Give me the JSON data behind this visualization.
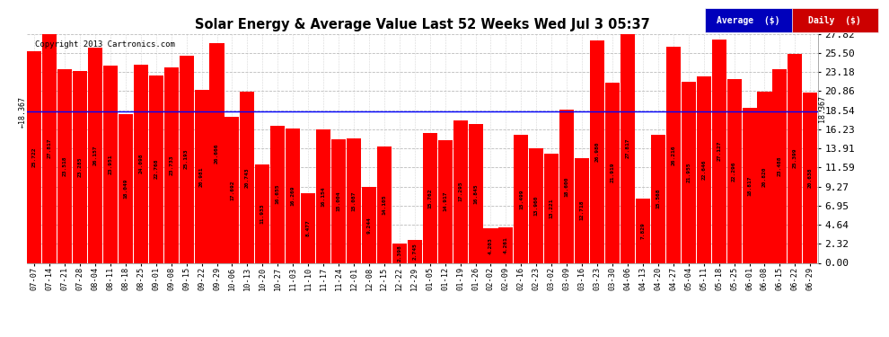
{
  "title": "Solar Energy & Average Value Last 52 Weeks Wed Jul 3 05:37",
  "copyright": "Copyright 2013 Cartronics.com",
  "bar_color": "#ff0000",
  "average_line_color": "#0000ff",
  "average_value": 18.367,
  "background_color": "#ffffff",
  "grid_color": "#bbbbbb",
  "yticks": [
    0.0,
    2.32,
    4.64,
    6.95,
    9.27,
    11.59,
    13.91,
    16.23,
    18.54,
    20.86,
    23.18,
    25.5,
    27.82
  ],
  "categories": [
    "07-07",
    "07-14",
    "07-21",
    "07-28",
    "08-04",
    "08-11",
    "08-18",
    "08-25",
    "09-01",
    "09-08",
    "09-15",
    "09-22",
    "09-29",
    "10-06",
    "10-13",
    "10-20",
    "10-27",
    "11-03",
    "11-10",
    "11-17",
    "11-24",
    "12-01",
    "12-08",
    "12-15",
    "12-22",
    "12-29",
    "01-05",
    "01-12",
    "01-19",
    "01-26",
    "02-02",
    "02-09",
    "02-16",
    "02-23",
    "03-02",
    "03-09",
    "03-16",
    "03-23",
    "03-30",
    "04-06",
    "04-13",
    "04-20",
    "04-27",
    "05-04",
    "05-11",
    "05-18",
    "05-25",
    "06-01",
    "06-08",
    "06-15",
    "06-22",
    "06-29"
  ],
  "values": [
    25.722,
    27.817,
    23.518,
    23.285,
    26.157,
    23.951,
    18.049,
    24.098,
    22.768,
    23.733,
    25.193,
    20.981,
    26.666,
    17.692,
    20.743,
    11.933,
    16.655,
    16.269,
    8.477,
    16.154,
    15.004,
    15.087,
    9.244,
    14.105,
    2.398,
    2.745,
    15.762,
    14.917,
    17.295,
    16.845,
    4.203,
    4.261,
    15.499,
    13.96,
    13.221,
    18.6,
    12.718,
    26.98,
    21.919,
    27.817,
    7.829,
    15.568,
    26.216,
    21.955,
    22.646,
    27.127,
    22.296,
    18.817,
    20.82,
    23.488,
    25.399,
    20.638
  ],
  "legend_avg_bg": "#0000bb",
  "legend_daily_bg": "#cc0000",
  "legend_avg_text": "Average  ($)",
  "legend_daily_text": "Daily  ($)"
}
